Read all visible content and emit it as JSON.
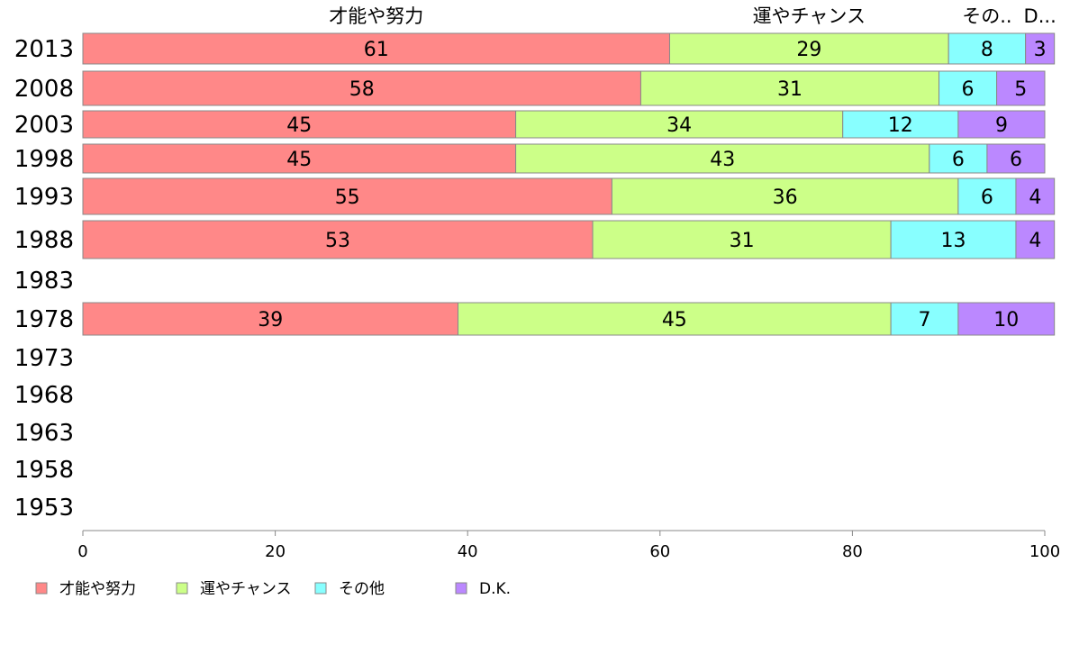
{
  "chart_data": {
    "type": "bar",
    "orientation": "horizontal",
    "stacked": true,
    "categories": [
      "2013",
      "2008",
      "2003",
      "1998",
      "1993",
      "1988",
      "1983",
      "1978",
      "1973",
      "1968",
      "1963",
      "1958",
      "1953"
    ],
    "series": [
      {
        "name": "才能や努力",
        "header": "才能や努力",
        "color": "#ff8888",
        "values": [
          61,
          58,
          45,
          45,
          55,
          53,
          null,
          39,
          null,
          null,
          null,
          null,
          null
        ]
      },
      {
        "name": "運やチャンス",
        "header": "運やチャンス",
        "color": "#ccff88",
        "values": [
          29,
          31,
          34,
          43,
          36,
          31,
          null,
          45,
          null,
          null,
          null,
          null,
          null
        ]
      },
      {
        "name": "その他",
        "header": "その..",
        "color": "#88ffff",
        "values": [
          8,
          6,
          12,
          6,
          6,
          13,
          null,
          7,
          null,
          null,
          null,
          null,
          null
        ]
      },
      {
        "name": "D.K.",
        "header": "D...",
        "color": "#bb88ff",
        "values": [
          3,
          5,
          9,
          6,
          4,
          4,
          null,
          10,
          null,
          null,
          null,
          null,
          null
        ]
      }
    ],
    "xlim": [
      0,
      100
    ],
    "xticks": [
      "0",
      "20",
      "40",
      "60",
      "80",
      "100"
    ],
    "grid": false,
    "legend_position": "bottom-left"
  }
}
